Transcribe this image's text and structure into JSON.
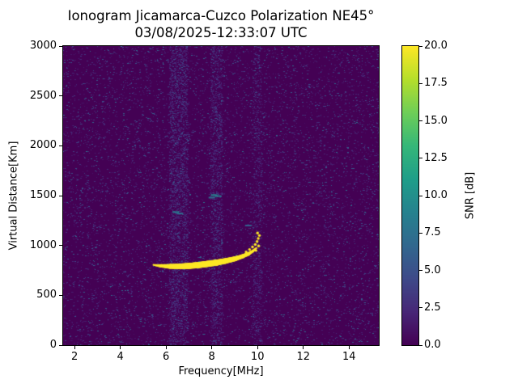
{
  "chart_data": {
    "type": "heatmap",
    "title": "Ionogram Jicamarca-Cuzco Polarization NE45°",
    "subtitle": "03/08/2025-12:33:07 UTC",
    "xlabel": "Frequency[MHz]",
    "ylabel": "Virtual Distance[Km]",
    "xlim": [
      1.5,
      15.3
    ],
    "ylim": [
      0,
      3000
    ],
    "xticks": [
      2,
      4,
      6,
      8,
      10,
      12,
      14
    ],
    "yticks": [
      0,
      500,
      1000,
      1500,
      2000,
      2500,
      3000
    ],
    "grid": false,
    "colormap": "viridis",
    "colorbar": {
      "label": "SNR [dB]",
      "min": 0,
      "max": 20,
      "ticks": [
        0,
        2.5,
        5,
        7.5,
        10,
        12.5,
        15,
        17.5,
        20
      ],
      "position": "right"
    },
    "background_snr_db": 0,
    "noise": {
      "base_count": 9000,
      "base_min_db": 1,
      "base_max_db": 8,
      "bands": [
        {
          "f_start": 6.15,
          "f_end": 6.95,
          "count": 2600,
          "max_db": 6
        },
        {
          "f_start": 7.95,
          "f_end": 8.45,
          "count": 1400,
          "max_db": 6
        },
        {
          "f_start": 9.8,
          "f_end": 10.2,
          "count": 700,
          "max_db": 5
        }
      ]
    },
    "echo_trace": {
      "snr_db": 20,
      "points": [
        [
          5.45,
          805
        ],
        [
          5.8,
          795
        ],
        [
          6.2,
          790
        ],
        [
          6.6,
          790
        ],
        [
          7.0,
          795
        ],
        [
          7.4,
          803
        ],
        [
          7.8,
          815
        ],
        [
          8.2,
          828
        ],
        [
          8.6,
          845
        ],
        [
          9.0,
          866
        ],
        [
          9.3,
          888
        ],
        [
          9.6,
          915
        ],
        [
          9.8,
          945
        ],
        [
          9.95,
          975
        ]
      ],
      "thickness_km": [
        18,
        35,
        48,
        56,
        60,
        62,
        62,
        60,
        55,
        48,
        42,
        36,
        28,
        18
      ]
    },
    "spread_echoes": [
      [
        9.5,
        935,
        20
      ],
      [
        9.65,
        960,
        20
      ],
      [
        9.78,
        985,
        20
      ],
      [
        9.9,
        1010,
        20
      ],
      [
        9.98,
        1040,
        20
      ],
      [
        10.03,
        1070,
        20
      ],
      [
        10.08,
        1100,
        20
      ],
      [
        10.0,
        1125,
        20
      ],
      [
        9.93,
        950,
        20
      ],
      [
        10.05,
        995,
        20
      ]
    ],
    "weak_echoes": [
      [
        8.1,
        1505,
        9
      ],
      [
        8.28,
        1495,
        8
      ],
      [
        6.42,
        1335,
        8
      ],
      [
        6.6,
        1320,
        7
      ],
      [
        8.0,
        1480,
        7
      ],
      [
        9.6,
        1200,
        6
      ]
    ]
  }
}
